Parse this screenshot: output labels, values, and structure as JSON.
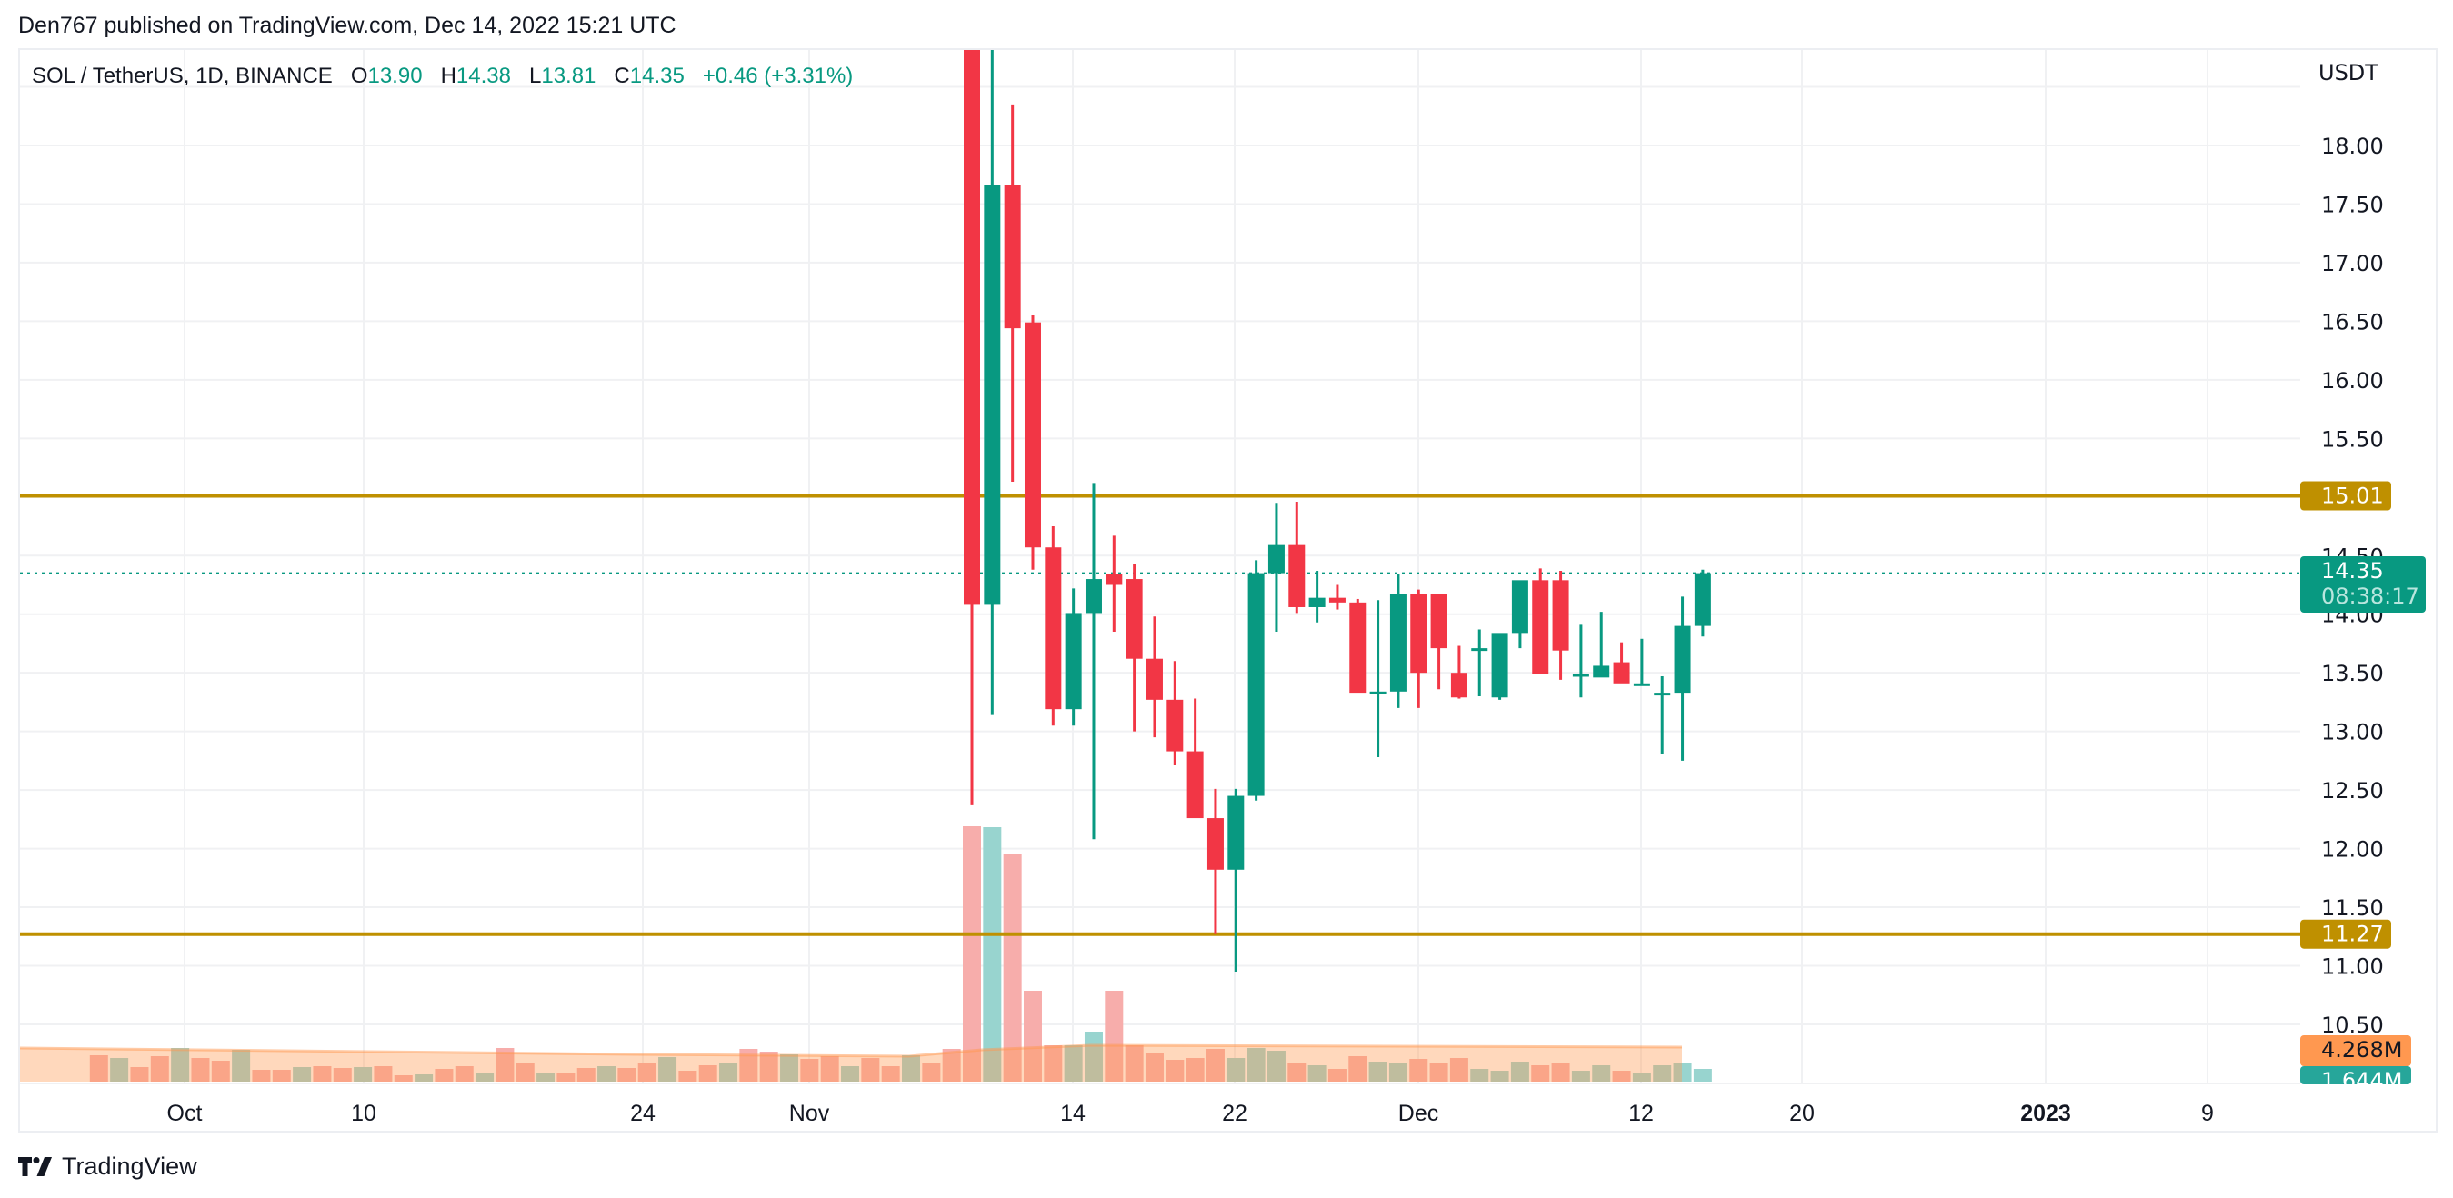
{
  "header": {
    "published": "Den767 published on TradingView.com, Dec 14, 2022 15:21 UTC"
  },
  "legend": {
    "symbol": "SOL / TetherUS, 1D, BINANCE",
    "o_label": "O",
    "o": "13.90",
    "h_label": "H",
    "h": "14.38",
    "l_label": "L",
    "l": "13.81",
    "c_label": "C",
    "c": "14.35",
    "change": "+0.46 (+3.31%)"
  },
  "price_axis": {
    "currency": "USDT",
    "ticks": [
      "18.00",
      "17.50",
      "17.00",
      "16.50",
      "16.00",
      "15.50",
      "14.50",
      "14.00",
      "13.50",
      "13.00",
      "12.50",
      "12.00",
      "11.50",
      "11.00",
      "10.50"
    ]
  },
  "badges": {
    "resistance": "15.01",
    "support": "11.27",
    "last_price": "14.35",
    "countdown": "08:38:17",
    "volume_ma": "4.268M",
    "volume": "1.644M"
  },
  "time_axis": {
    "labels": [
      "Oct",
      "10",
      "24",
      "Nov",
      "14",
      "22",
      "Dec",
      "12",
      "20",
      "2023",
      "9"
    ]
  },
  "footer": {
    "brand": "TradingView"
  },
  "colors": {
    "up": "#089981",
    "down": "#f23645",
    "level": "#bf9000",
    "vol_up": "#92d2cc",
    "vol_down": "#f7a9a7",
    "vol_ma": "#ff9850"
  },
  "chart_data": {
    "type": "candlestick",
    "title": "SOL / TetherUS, 1D, BINANCE",
    "ylabel": "USDT",
    "ylim": [
      10.3,
      18.9
    ],
    "horizontal_levels": [
      15.01,
      11.27
    ],
    "last_price": 14.35,
    "x": [
      "Nov 8",
      "Nov 9",
      "Nov 10",
      "Nov 11",
      "Nov 12",
      "Nov 13",
      "Nov 14",
      "Nov 15",
      "Nov 16",
      "Nov 17",
      "Nov 18",
      "Nov 19",
      "Nov 20",
      "Nov 21",
      "Nov 22",
      "Nov 23",
      "Nov 24",
      "Nov 25",
      "Nov 26",
      "Nov 27",
      "Nov 28",
      "Nov 29",
      "Nov 30",
      "Dec 1",
      "Dec 2",
      "Dec 3",
      "Dec 4",
      "Dec 5",
      "Dec 6",
      "Dec 7",
      "Dec 8",
      "Dec 9",
      "Dec 10",
      "Dec 11",
      "Dec 12",
      "Dec 13",
      "Dec 14"
    ],
    "open": [
      18.9,
      14.08,
      17.66,
      16.49,
      14.57,
      13.19,
      14.01,
      14.34,
      14.3,
      13.62,
      13.27,
      12.83,
      12.26,
      11.82,
      12.45,
      14.35,
      14.59,
      14.06,
      14.14,
      14.1,
      13.33,
      13.34,
      14.17,
      14.17,
      13.5,
      13.71,
      13.29,
      13.84,
      14.29,
      14.29,
      13.49,
      13.46,
      13.59,
      13.41,
      13.32,
      13.33,
      13.9
    ],
    "high": [
      18.9,
      18.9,
      18.35,
      16.55,
      14.75,
      14.22,
      15.12,
      14.67,
      14.43,
      13.98,
      13.6,
      13.28,
      12.51,
      12.51,
      14.46,
      14.95,
      14.96,
      14.37,
      14.25,
      14.13,
      14.12,
      14.34,
      14.21,
      13.86,
      13.73,
      13.87,
      13.82,
      14.2,
      14.39,
      14.37,
      13.91,
      14.02,
      13.76,
      13.79,
      13.47,
      14.15,
      14.38
    ],
    "low": [
      12.37,
      13.14,
      15.13,
      14.38,
      13.05,
      13.05,
      12.08,
      13.85,
      13.0,
      12.95,
      12.71,
      12.58,
      11.27,
      10.95,
      12.41,
      13.85,
      14.01,
      13.93,
      14.04,
      13.67,
      12.78,
      13.2,
      13.2,
      13.36,
      13.28,
      13.3,
      13.27,
      13.71,
      13.83,
      13.44,
      13.29,
      13.49,
      13.55,
      13.39,
      12.81,
      12.75,
      13.81
    ],
    "close": [
      14.08,
      17.66,
      16.44,
      14.57,
      13.19,
      14.01,
      14.3,
      14.25,
      13.62,
      13.27,
      12.83,
      12.26,
      11.82,
      12.45,
      14.35,
      14.59,
      14.06,
      14.14,
      14.1,
      13.33,
      13.34,
      14.17,
      13.5,
      13.71,
      13.29,
      13.71,
      13.84,
      14.29,
      13.49,
      13.69,
      13.49,
      13.56,
      13.41,
      13.41,
      13.33,
      13.9,
      14.35
    ],
    "volume_ma_last": "4.268M",
    "volume_last": "1.644M"
  }
}
